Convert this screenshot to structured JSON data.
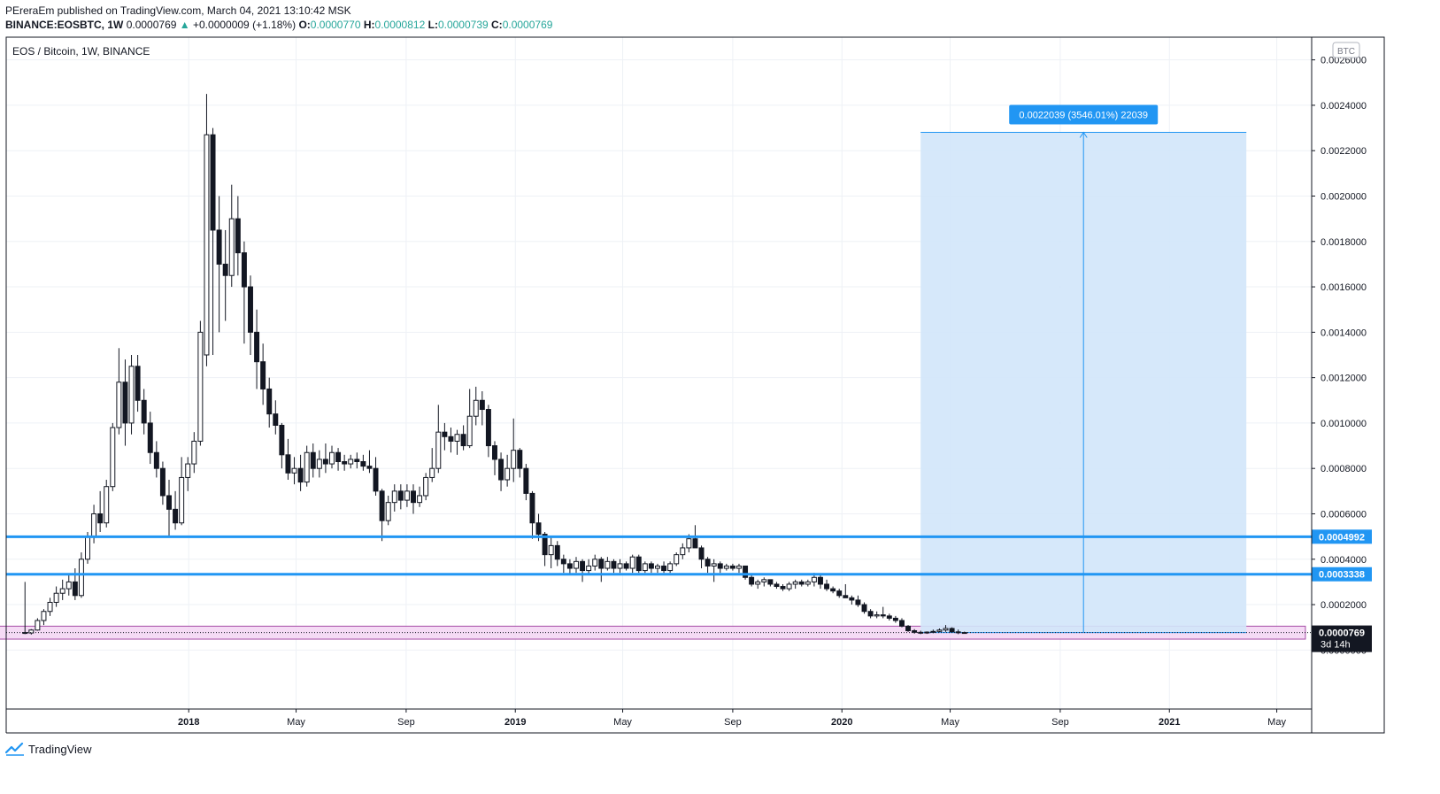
{
  "header": {
    "line1": "PEreraEm published on TradingView.com, March 04, 2021 13:10:42 MSK",
    "symbol": "BINANCE:EOSBTC, 1W",
    "last": "0.0000769",
    "change": "+0.0000009 (+1.18%)",
    "o_label": "O:",
    "o_value": "0.0000770",
    "h_label": "H:",
    "h_value": "0.0000812",
    "l_label": "L:",
    "l_value": "0.0000739",
    "c_label": "C:",
    "c_value": "0.0000769"
  },
  "footer": {
    "brand": "TradingView",
    "icon": "tradingview-logo-icon"
  },
  "colors": {
    "level_line": "#2196f3",
    "measure_fill": "#d2e6fa",
    "measure_line": "#2196f3",
    "zone_fill": "#f3d2f3",
    "zone_border": "#a64ca6",
    "candle": "#131722",
    "grid": "#eef1f6"
  },
  "chart_data": {
    "type": "candlestick",
    "title": "EOS / Bitcoin, 1W, BINANCE",
    "currency_badge": "BTC",
    "y_range": [
      -0.00026,
      0.0027
    ],
    "x_range": [
      "2017-06-11",
      "2021-06-09"
    ],
    "y_ticks": [
      "0.0026000",
      "0.0024000",
      "0.0022000",
      "0.0020000",
      "0.0018000",
      "0.0016000",
      "0.0014000",
      "0.0012000",
      "0.0010000",
      "0.0008000",
      "0.0006000",
      "0.0004000",
      "0.0002000",
      "0.0000000"
    ],
    "x_ticks": [
      {
        "label": "2018",
        "date": "2018-01-01",
        "bold": true
      },
      {
        "label": "May",
        "date": "2018-05-01",
        "bold": false
      },
      {
        "label": "Sep",
        "date": "2018-09-01",
        "bold": false
      },
      {
        "label": "2019",
        "date": "2019-01-01",
        "bold": true
      },
      {
        "label": "May",
        "date": "2019-05-01",
        "bold": false
      },
      {
        "label": "Sep",
        "date": "2019-09-01",
        "bold": false
      },
      {
        "label": "2020",
        "date": "2020-01-01",
        "bold": true
      },
      {
        "label": "May",
        "date": "2020-05-01",
        "bold": false
      },
      {
        "label": "Sep",
        "date": "2020-09-01",
        "bold": false
      },
      {
        "label": "2021",
        "date": "2021-01-01",
        "bold": true
      },
      {
        "label": "May",
        "date": "2021-05-01",
        "bold": false
      }
    ],
    "candles_start": "2017-07-02",
    "candles_interval_days": 7,
    "candles": [
      [
        7.7e-05,
        0.0003,
        7e-05,
        7.5e-05
      ],
      [
        7.5e-05,
        9.2e-05,
        6.8e-05,
        8.8e-05
      ],
      [
        8.8e-05,
        0.00014,
        8.5e-05,
        0.00013
      ],
      [
        0.00013,
        0.00018,
        0.00011,
        0.00017
      ],
      [
        0.00017,
        0.00023,
        0.00015,
        0.00021
      ],
      [
        0.00021,
        0.00028,
        0.00019,
        0.00025
      ],
      [
        0.00025,
        0.00031,
        0.00022,
        0.00027
      ],
      [
        0.00027,
        0.00033,
        0.00024,
        0.0003
      ],
      [
        0.0003,
        0.00036,
        0.00022,
        0.00024
      ],
      [
        0.00024,
        0.00043,
        0.00023,
        0.0004
      ],
      [
        0.0004,
        0.00052,
        0.00038,
        0.0005
      ],
      [
        0.0005,
        0.00064,
        0.00047,
        0.0006
      ],
      [
        0.0006,
        0.0007,
        0.00052,
        0.00056
      ],
      [
        0.00056,
        0.00075,
        0.00054,
        0.00072
      ],
      [
        0.00072,
        0.001,
        0.0007,
        0.00098
      ],
      [
        0.00098,
        0.00133,
        0.00095,
        0.00118
      ],
      [
        0.00118,
        0.00128,
        0.0009,
        0.001
      ],
      [
        0.001,
        0.0013,
        0.00095,
        0.00125
      ],
      [
        0.00125,
        0.0013,
        0.00105,
        0.0011
      ],
      [
        0.0011,
        0.00115,
        0.00095,
        0.001
      ],
      [
        0.001,
        0.00105,
        0.00082,
        0.00087
      ],
      [
        0.00087,
        0.00092,
        0.00076,
        0.0008
      ],
      [
        0.0008,
        0.00083,
        0.00064,
        0.00068
      ],
      [
        0.00068,
        0.00075,
        0.0005,
        0.00062
      ],
      [
        0.00062,
        0.0007,
        0.00053,
        0.00056
      ],
      [
        0.00056,
        0.00085,
        0.00055,
        0.00076
      ],
      [
        0.00076,
        0.00085,
        0.0007,
        0.00082
      ],
      [
        0.00082,
        0.00096,
        0.00078,
        0.00092
      ],
      [
        0.00092,
        0.00145,
        0.0009,
        0.0014
      ],
      [
        0.0013,
        0.00245,
        0.00125,
        0.00227
      ],
      [
        0.00227,
        0.0023,
        0.0013,
        0.00185
      ],
      [
        0.00185,
        0.002,
        0.0014,
        0.0017
      ],
      [
        0.0017,
        0.00185,
        0.00145,
        0.00165
      ],
      [
        0.00165,
        0.00205,
        0.0016,
        0.0019
      ],
      [
        0.0019,
        0.002,
        0.00165,
        0.00175
      ],
      [
        0.00175,
        0.0018,
        0.00135,
        0.0016
      ],
      [
        0.0016,
        0.00165,
        0.0013,
        0.0014
      ],
      [
        0.0014,
        0.0015,
        0.00115,
        0.00127
      ],
      [
        0.00127,
        0.00135,
        0.00108,
        0.00115
      ],
      [
        0.00115,
        0.0012,
        0.00098,
        0.00104
      ],
      [
        0.00104,
        0.0011,
        0.00095,
        0.00099
      ],
      [
        0.00099,
        0.001,
        0.0008,
        0.00086
      ],
      [
        0.00086,
        0.00093,
        0.00075,
        0.00078
      ],
      [
        0.00078,
        0.00085,
        0.00073,
        0.0008
      ],
      [
        0.0008,
        0.00086,
        0.0007,
        0.00074
      ],
      [
        0.00074,
        0.0009,
        0.00072,
        0.00087
      ],
      [
        0.00087,
        0.00091,
        0.00076,
        0.0008
      ],
      [
        0.0008,
        0.00088,
        0.00076,
        0.00084
      ],
      [
        0.00084,
        0.00091,
        0.00078,
        0.00082
      ],
      [
        0.00082,
        0.0009,
        0.0008,
        0.00087
      ],
      [
        0.00087,
        0.00089,
        0.00079,
        0.00083
      ],
      [
        0.00083,
        0.00086,
        0.00079,
        0.00082
      ],
      [
        0.00082,
        0.00086,
        0.0008,
        0.00084
      ],
      [
        0.00084,
        0.00087,
        0.0008,
        0.00083
      ],
      [
        0.00083,
        0.00086,
        0.00079,
        0.00081
      ],
      [
        0.00081,
        0.00088,
        0.00078,
        0.0008
      ],
      [
        0.0008,
        0.00085,
        0.00068,
        0.0007
      ],
      [
        0.0007,
        0.00071,
        0.00048,
        0.00057
      ],
      [
        0.00057,
        0.00068,
        0.00055,
        0.00065
      ],
      [
        0.00065,
        0.00073,
        0.00061,
        0.0007
      ],
      [
        0.0007,
        0.00073,
        0.00062,
        0.00066
      ],
      [
        0.00066,
        0.00073,
        0.00063,
        0.0007
      ],
      [
        0.0007,
        0.00073,
        0.0006,
        0.00065
      ],
      [
        0.00065,
        0.00072,
        0.00063,
        0.00068
      ],
      [
        0.00068,
        0.00078,
        0.00066,
        0.00076
      ],
      [
        0.00076,
        0.00089,
        0.00074,
        0.0008
      ],
      [
        0.0008,
        0.00108,
        0.00078,
        0.00096
      ],
      [
        0.00096,
        0.001,
        0.00088,
        0.00094
      ],
      [
        0.00094,
        0.00098,
        0.00087,
        0.00092
      ],
      [
        0.00092,
        0.00097,
        0.00086,
        0.00095
      ],
      [
        0.00095,
        0.00099,
        0.00088,
        0.0009
      ],
      [
        0.0009,
        0.00115,
        0.00089,
        0.00103
      ],
      [
        0.00103,
        0.00116,
        0.00099,
        0.0011
      ],
      [
        0.0011,
        0.00114,
        0.00099,
        0.00106
      ],
      [
        0.00106,
        0.00108,
        0.00085,
        0.0009
      ],
      [
        0.0009,
        0.00092,
        0.00077,
        0.00084
      ],
      [
        0.00084,
        0.00087,
        0.0007,
        0.00075
      ],
      [
        0.00075,
        0.00086,
        0.00072,
        0.0008
      ],
      [
        0.0008,
        0.00102,
        0.00074,
        0.00088
      ],
      [
        0.00088,
        0.00089,
        0.00076,
        0.0008
      ],
      [
        0.0008,
        0.00082,
        0.00066,
        0.00069
      ],
      [
        0.00069,
        0.0007,
        0.00049,
        0.00056
      ],
      [
        0.00056,
        0.0006,
        0.00048,
        0.00051
      ],
      [
        0.00051,
        0.00052,
        0.00037,
        0.00042
      ],
      [
        0.00042,
        0.0005,
        0.00036,
        0.00046
      ],
      [
        0.00046,
        0.00048,
        0.00037,
        0.0004
      ],
      [
        0.0004,
        0.00042,
        0.00034,
        0.00038
      ],
      [
        0.00038,
        0.0004,
        0.00033,
        0.00036
      ],
      [
        0.00036,
        0.00041,
        0.00034,
        0.00039
      ],
      [
        0.00039,
        0.0004,
        0.0003,
        0.00035
      ],
      [
        0.00035,
        0.0004,
        0.00033,
        0.00037
      ],
      [
        0.00037,
        0.00042,
        0.00035,
        0.0004
      ],
      [
        0.0004,
        0.00041,
        0.0003,
        0.00036
      ],
      [
        0.00036,
        0.00041,
        0.00035,
        0.00039
      ],
      [
        0.00039,
        0.0004,
        0.00034,
        0.00036
      ],
      [
        0.00036,
        0.0004,
        0.00034,
        0.00038
      ],
      [
        0.00038,
        0.00039,
        0.00035,
        0.00036
      ],
      [
        0.00036,
        0.00042,
        0.00034,
        0.00041
      ],
      [
        0.00041,
        0.00042,
        0.00034,
        0.00035
      ],
      [
        0.00035,
        0.00039,
        0.00034,
        0.00038
      ],
      [
        0.00038,
        0.00039,
        0.00034,
        0.00036
      ],
      [
        0.00036,
        0.00038,
        0.00034,
        0.00037
      ],
      [
        0.00037,
        0.00039,
        0.00034,
        0.00035
      ],
      [
        0.00035,
        0.00039,
        0.00034,
        0.00038
      ],
      [
        0.00038,
        0.00043,
        0.00037,
        0.00042
      ],
      [
        0.00042,
        0.00047,
        0.0004,
        0.00045
      ],
      [
        0.00045,
        0.00051,
        0.00043,
        0.00049
      ],
      [
        0.00049,
        0.00055,
        0.00047,
        0.00045
      ],
      [
        0.00045,
        0.00046,
        0.00036,
        0.0004
      ],
      [
        0.0004,
        0.00041,
        0.00034,
        0.00037
      ],
      [
        0.00037,
        0.0004,
        0.0003,
        0.00038
      ],
      [
        0.00038,
        0.00039,
        0.00034,
        0.00036
      ],
      [
        0.00036,
        0.00038,
        0.00035,
        0.00037
      ],
      [
        0.00037,
        0.00038,
        0.00035,
        0.00036
      ],
      [
        0.00036,
        0.00038,
        0.00034,
        0.00037
      ],
      [
        0.00037,
        0.00037,
        0.00031,
        0.00032
      ],
      [
        0.00032,
        0.00033,
        0.00028,
        0.00029
      ],
      [
        0.00029,
        0.00031,
        0.00027,
        0.0003
      ],
      [
        0.0003,
        0.00032,
        0.00028,
        0.00031
      ],
      [
        0.00031,
        0.00031,
        0.00028,
        0.00029
      ],
      [
        0.00029,
        0.0003,
        0.00027,
        0.00028
      ],
      [
        0.00028,
        0.00029,
        0.00026,
        0.00027
      ],
      [
        0.00027,
        0.0003,
        0.00026,
        0.00029
      ],
      [
        0.00029,
        0.00031,
        0.00027,
        0.0003
      ],
      [
        0.0003,
        0.00031,
        0.00028,
        0.00029
      ],
      [
        0.00029,
        0.00031,
        0.00028,
        0.0003
      ],
      [
        0.0003,
        0.00034,
        0.00028,
        0.00032
      ],
      [
        0.00032,
        0.00033,
        0.00027,
        0.00029
      ],
      [
        0.00029,
        0.00031,
        0.00026,
        0.00027
      ],
      [
        0.00027,
        0.00028,
        0.00025,
        0.00026
      ],
      [
        0.00026,
        0.00027,
        0.00023,
        0.00024
      ],
      [
        0.00024,
        0.00029,
        0.00023,
        0.00023
      ],
      [
        0.00023,
        0.00024,
        0.0002,
        0.00022
      ],
      [
        0.00022,
        0.00024,
        0.00019,
        0.0002
      ],
      [
        0.0002,
        0.00021,
        0.00016,
        0.00017
      ],
      [
        0.00017,
        0.00018,
        0.00014,
        0.00015
      ],
      [
        0.00015,
        0.00017,
        0.00014,
        0.000155
      ],
      [
        0.000155,
        0.00019,
        0.00014,
        0.00015
      ],
      [
        0.00015,
        0.00016,
        0.00013,
        0.00014
      ],
      [
        0.00014,
        0.00015,
        0.00012,
        0.00013
      ],
      [
        0.00013,
        0.00014,
        0.0001,
        0.000105
      ],
      [
        0.000105,
        0.00011,
        8e-05,
        8.5e-05
      ],
      [
        8.5e-05,
        9.2e-05,
        7.2e-05,
        7.8e-05
      ],
      [
        7.8e-05,
        8.5e-05,
        7e-05,
        7.6e-05
      ],
      [
        7.6e-05,
        8.2e-05,
        7.1e-05,
        7.9e-05
      ],
      [
        7.9e-05,
        9e-05,
        7.4e-05,
        8.2e-05
      ],
      [
        8.2e-05,
        9.5e-05,
        7.8e-05,
        8.8e-05
      ],
      [
        8.8e-05,
        0.00011,
        8e-05,
        9.5e-05
      ],
      [
        9.5e-05,
        0.0001,
        7.6e-05,
        8e-05
      ],
      [
        8e-05,
        9e-05,
        7e-05,
        7.6e-05
      ],
      [
        7.7e-05,
        8.1e-05,
        7.4e-05,
        7.7e-05
      ]
    ],
    "levels": [
      {
        "value": 0.0004992,
        "label": "0.0004992"
      },
      {
        "value": 0.0003338,
        "label": "0.0003338"
      }
    ],
    "last_price": {
      "value": 7.69e-05,
      "label": "0.0000769",
      "countdown": "3d 14h"
    },
    "measure": {
      "from_date": "2020-03-29",
      "to_date": "2021-03-28",
      "low": 7.69e-05,
      "high": 0.0022808,
      "arrow_date": "2020-09-27",
      "label": "0.0022039 (3546.01%) 22039"
    },
    "zone": {
      "from_date": "2017-04-01",
      "to_date": "2021-06-02",
      "low": 4.8e-05,
      "high": 0.000105
    }
  }
}
